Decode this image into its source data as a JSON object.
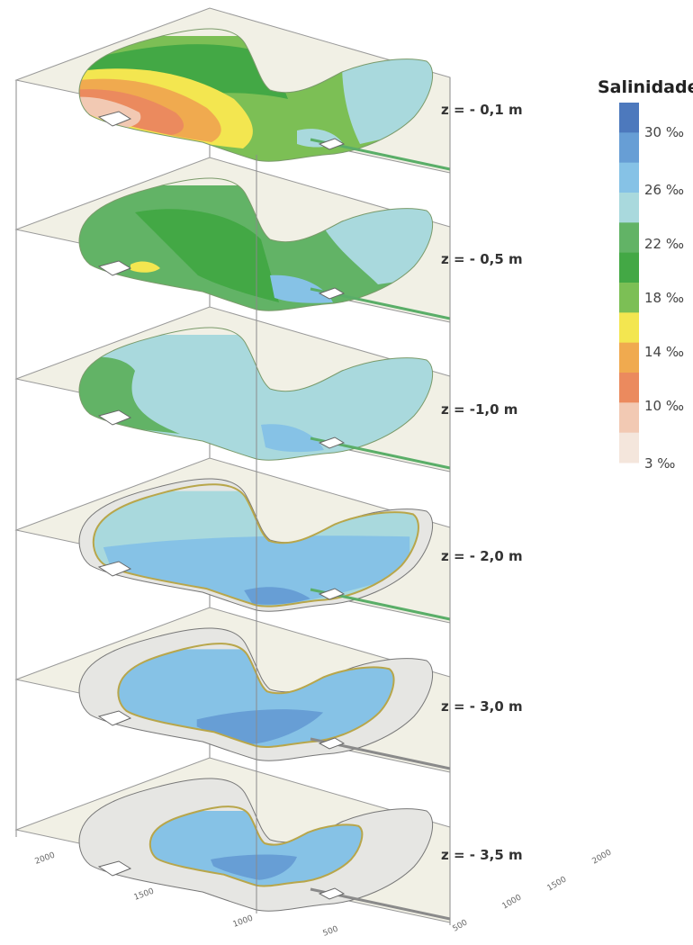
{
  "legend": {
    "title": "Salinidade",
    "colors": [
      "#f4e6dc",
      "#f2c9b3",
      "#eb8a5e",
      "#f0aa4f",
      "#f3e650",
      "#7cbf55",
      "#43a845",
      "#62b366",
      "#a9d9dd",
      "#86c2e6",
      "#679ed5",
      "#4d79bd"
    ],
    "tick_labels": [
      "30 ‰",
      "26 ‰",
      "22 ‰",
      "18 ‰",
      "14 ‰",
      "10 ‰",
      "3 ‰"
    ]
  },
  "layers": [
    {
      "depth_label": "z = - 0,1 m",
      "palette": [
        "#7cbf55",
        "#43a845",
        "#f3e650",
        "#f0aa4f",
        "#eb8a5e",
        "#f2c9b3",
        "#a9d9dd"
      ]
    },
    {
      "depth_label": "z = - 0,5 m",
      "palette": [
        "#62b366",
        "#43a845",
        "#a9d9dd",
        "#86c2e6",
        "#f3e650"
      ]
    },
    {
      "depth_label": "z = -1,0 m",
      "palette": [
        "#a9d9dd",
        "#62b366",
        "#86c2e6"
      ]
    },
    {
      "depth_label": "z = - 2,0 m",
      "palette": [
        "#a9d9dd",
        "#86c2e6",
        "#679ed5",
        "#e6e6e3"
      ]
    },
    {
      "depth_label": "z = - 3,0 m",
      "palette": [
        "#86c2e6",
        "#679ed5",
        "#e6e6e3"
      ]
    },
    {
      "depth_label": "z = - 3,5 m",
      "palette": [
        "#86c2e6",
        "#679ed5",
        "#e6e6e3"
      ]
    }
  ],
  "axis_ticks": {
    "left_side": [
      "2000",
      "1500",
      "1000",
      "500"
    ],
    "right_side": [
      "2000",
      "1500",
      "1000",
      "500"
    ]
  }
}
